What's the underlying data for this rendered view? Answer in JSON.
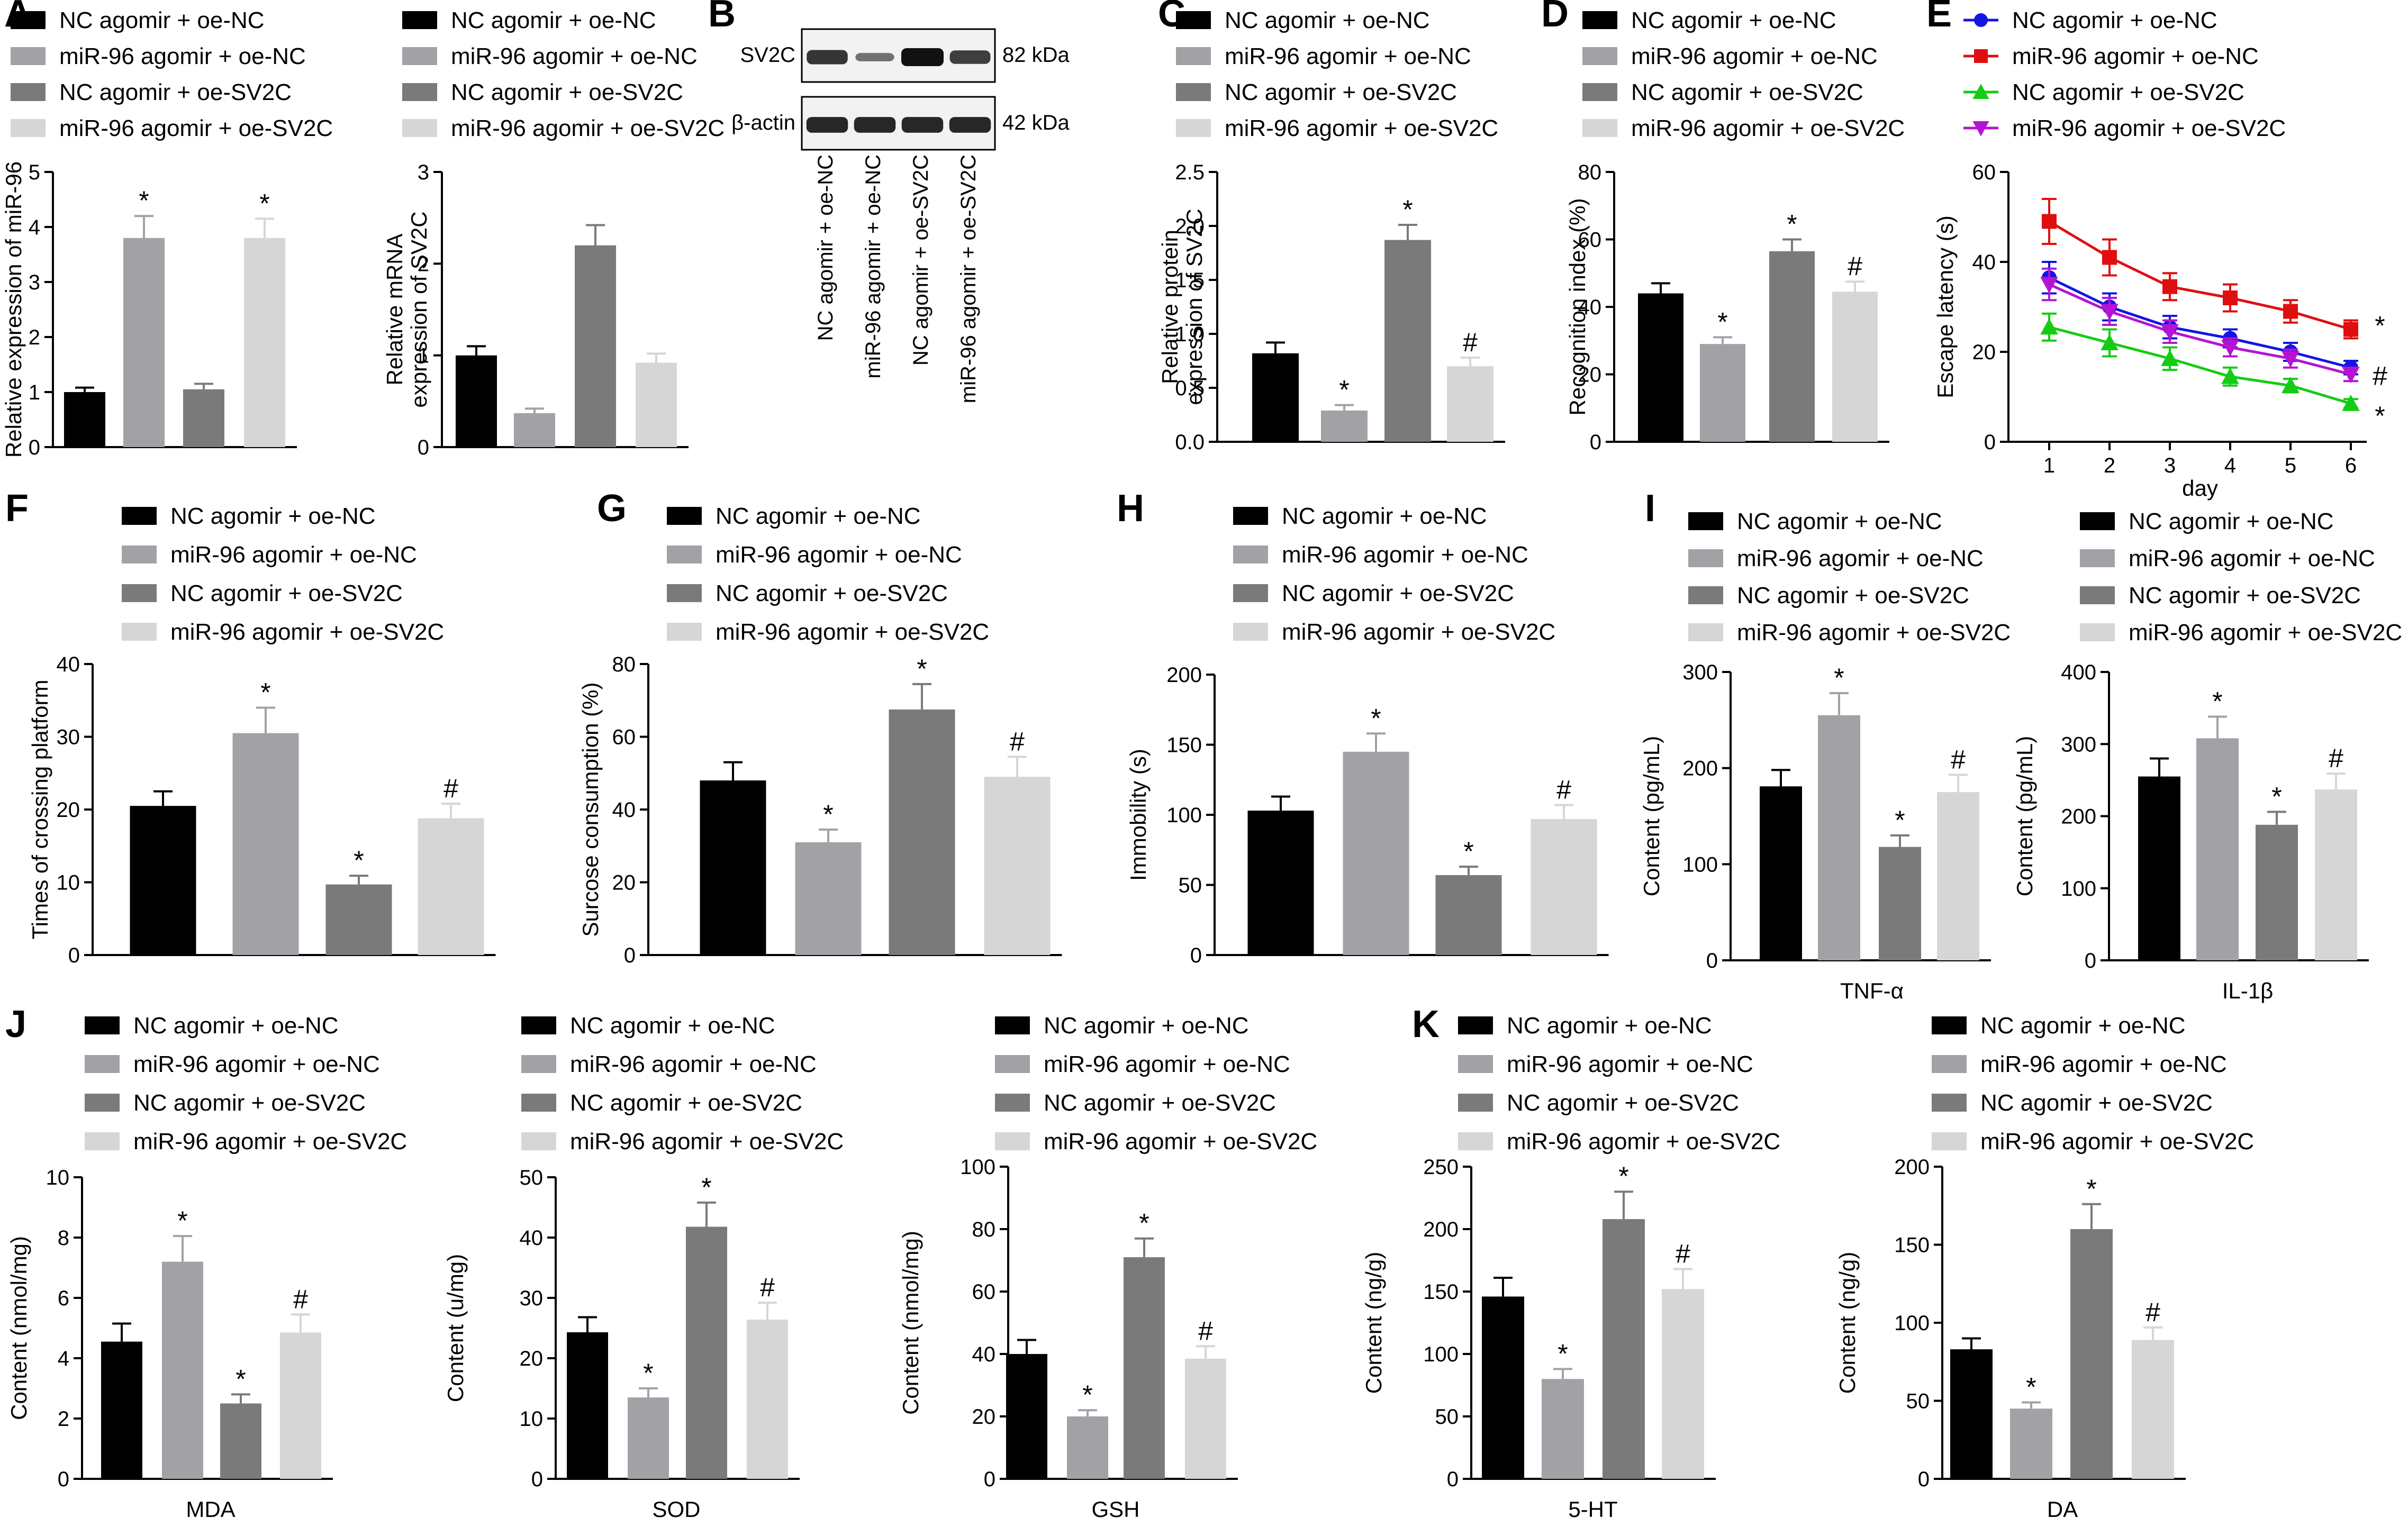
{
  "figure_labels": [
    "A",
    "B",
    "C",
    "D",
    "E",
    "F",
    "G",
    "H",
    "I",
    "J",
    "K"
  ],
  "legend_labels": [
    "NC agomir + oe-NC",
    "miR-96 agomir + oe-NC",
    "NC agomir + oe-SV2C",
    "miR-96 agomir + oe-SV2C"
  ],
  "colors": {
    "black": "#000000",
    "gray1": "#a2a2a6",
    "gray2": "#7a7a7a",
    "gray3": "#d6d6d6",
    "blue": "#1414e6",
    "red": "#e00f0f",
    "green": "#14cc14",
    "purple": "#b414d2"
  },
  "western_blot": {
    "panel": "B",
    "bands": [
      {
        "name": "SV2C",
        "size": "82 kDa",
        "intensity": [
          0.75,
          0.35,
          1.0,
          0.7
        ]
      },
      {
        "name": "β-actin",
        "size": "42 kDa",
        "intensity": [
          0.85,
          0.85,
          0.85,
          0.85
        ]
      }
    ],
    "lane_labels": [
      "NC agomir + oe-NC",
      "miR-96 agomir + oe-NC",
      "NC agomir + oe-SV2C",
      "miR-96 agomir + oe-SV2C"
    ]
  },
  "chart_data": [
    {
      "panel": "A",
      "type": "bar",
      "title": "",
      "xlabel": "",
      "ylabel": "Relative expression of miR-96",
      "categories": [
        "NC agomir + oe-NC",
        "miR-96 agomir + oe-NC",
        "NC agomir + oe-SV2C",
        "miR-96 agomir + oe-SV2C"
      ],
      "values": [
        1.0,
        3.8,
        1.05,
        3.8
      ],
      "errors": [
        0.08,
        0.4,
        0.1,
        0.35
      ],
      "marks": [
        "",
        "*",
        "",
        "*"
      ],
      "ylim": [
        0,
        5
      ],
      "yticks": [
        0,
        1,
        2,
        3,
        4,
        5
      ],
      "group_label": ""
    },
    {
      "panel": "A",
      "type": "bar",
      "title": "",
      "xlabel": "",
      "ylabel": "Relative mRNA expression of SV2C",
      "categories": [
        "NC agomir + oe-NC",
        "miR-96 agomir + oe-NC",
        "NC agomir + oe-SV2C",
        "miR-96 agomir + oe-SV2C"
      ],
      "values": [
        1.0,
        0.37,
        2.2,
        0.92
      ],
      "errors": [
        0.1,
        0.05,
        0.22,
        0.1
      ],
      "marks": [
        "",
        "",
        "",
        ""
      ],
      "ylim": [
        0,
        3
      ],
      "yticks": [
        0,
        1,
        2,
        3
      ],
      "group_label": ""
    },
    {
      "panel": "C",
      "type": "bar",
      "title": "",
      "xlabel": "",
      "ylabel": "Relative protein expression of SV2C",
      "categories": [
        "NC agomir + oe-NC",
        "miR-96 agomir + oe-NC",
        "NC agomir + oe-SV2C",
        "miR-96 agomir + oe-SV2C"
      ],
      "values": [
        0.82,
        0.29,
        1.87,
        0.7
      ],
      "errors": [
        0.1,
        0.05,
        0.14,
        0.08
      ],
      "marks": [
        "",
        "*",
        "*",
        "#"
      ],
      "ylim": [
        0,
        2.5
      ],
      "yticks": [
        0.0,
        0.5,
        1.0,
        1.5,
        2.0,
        2.5
      ],
      "group_label": ""
    },
    {
      "panel": "D",
      "type": "bar",
      "title": "",
      "xlabel": "",
      "ylabel": "Recognition index (%)",
      "categories": [
        "NC agomir + oe-NC",
        "miR-96 agomir + oe-NC",
        "NC agomir + oe-SV2C",
        "miR-96 agomir + oe-SV2C"
      ],
      "values": [
        44,
        29,
        56.5,
        44.5
      ],
      "errors": [
        3,
        2,
        3.5,
        3
      ],
      "marks": [
        "",
        "*",
        "*",
        "#"
      ],
      "ylim": [
        0,
        80
      ],
      "yticks": [
        0,
        20,
        40,
        60,
        80
      ],
      "group_label": ""
    },
    {
      "panel": "E",
      "type": "line",
      "title": "",
      "xlabel": "day",
      "ylabel": "Escape latency (s)",
      "x": [
        1,
        2,
        3,
        4,
        5,
        6
      ],
      "series": [
        {
          "name": "NC agomir + oe-NC",
          "color": "#1414e6",
          "marker": "circle",
          "values": [
            36.5,
            30,
            25.5,
            23,
            20,
            16.5
          ],
          "errors": [
            3.5,
            3,
            2.5,
            2,
            2,
            1.5
          ]
        },
        {
          "name": "miR-96 agomir + oe-NC",
          "color": "#e00f0f",
          "marker": "square",
          "values": [
            49,
            41,
            34.5,
            32,
            29,
            25
          ],
          "errors": [
            5,
            4,
            3,
            3,
            2.5,
            2
          ]
        },
        {
          "name": "NC agomir + oe-SV2C",
          "color": "#14cc14",
          "marker": "triangle-up",
          "values": [
            25.5,
            22,
            18.5,
            14.5,
            12.5,
            8.5
          ],
          "errors": [
            3,
            3,
            2.5,
            2,
            1.5,
            1
          ]
        },
        {
          "name": "miR-96 agomir + oe-SV2C",
          "color": "#b414d2",
          "marker": "triangle-down",
          "values": [
            35,
            29,
            24.5,
            21,
            18.5,
            15
          ],
          "errors": [
            3.5,
            3,
            2.5,
            2,
            2,
            1.5
          ]
        }
      ],
      "end_marks": [
        "*",
        "#",
        "*"
      ],
      "ylim": [
        0,
        60
      ],
      "yticks": [
        0,
        20,
        40,
        60
      ]
    },
    {
      "panel": "F",
      "type": "bar",
      "title": "",
      "xlabel": "",
      "ylabel": "Times of crossing platform",
      "categories": [
        "NC agomir + oe-NC",
        "miR-96 agomir + oe-NC",
        "NC agomir + oe-SV2C",
        "miR-96 agomir + oe-SV2C"
      ],
      "values": [
        20.5,
        30.5,
        9.7,
        18.8
      ],
      "errors": [
        2,
        3.5,
        1.2,
        2
      ],
      "marks": [
        "",
        "*",
        "*",
        "#"
      ],
      "ylim": [
        0,
        40
      ],
      "yticks": [
        0,
        10,
        20,
        30,
        40
      ],
      "group_label": ""
    },
    {
      "panel": "G",
      "type": "bar",
      "title": "",
      "xlabel": "",
      "ylabel": "Surcose consumption (%)",
      "categories": [
        "NC agomir + oe-NC",
        "miR-96 agomir + oe-NC",
        "NC agomir + oe-SV2C",
        "miR-96 agomir + oe-SV2C"
      ],
      "values": [
        48,
        31,
        67.5,
        49
      ],
      "errors": [
        5,
        3.5,
        7,
        5.5
      ],
      "marks": [
        "",
        "*",
        "*",
        "#"
      ],
      "ylim": [
        0,
        80
      ],
      "yticks": [
        0,
        20,
        40,
        60,
        80
      ],
      "group_label": ""
    },
    {
      "panel": "H",
      "type": "bar",
      "title": "",
      "xlabel": "",
      "ylabel": "Immobility (s)",
      "categories": [
        "NC agomir + oe-NC",
        "miR-96 agomir + oe-NC",
        "NC agomir + oe-SV2C",
        "miR-96 agomir + oe-SV2C"
      ],
      "values": [
        103,
        145,
        57,
        97
      ],
      "errors": [
        10,
        13,
        6,
        10
      ],
      "marks": [
        "",
        "*",
        "*",
        "#"
      ],
      "ylim": [
        0,
        200
      ],
      "yticks": [
        0,
        50,
        100,
        150,
        200
      ],
      "group_label": ""
    },
    {
      "panel": "I",
      "type": "bar",
      "title": "",
      "xlabel": "",
      "ylabel": "Content (pg/mL)",
      "categories": [
        "NC agomir + oe-NC",
        "miR-96 agomir + oe-NC",
        "NC agomir + oe-SV2C",
        "miR-96 agomir + oe-SV2C"
      ],
      "values": [
        181,
        255,
        118,
        175
      ],
      "errors": [
        17,
        23,
        12,
        18
      ],
      "marks": [
        "",
        "*",
        "*",
        "#"
      ],
      "ylim": [
        0,
        300
      ],
      "yticks": [
        0,
        100,
        200,
        300
      ],
      "group_label": "TNF-α"
    },
    {
      "panel": "I",
      "type": "bar",
      "title": "",
      "xlabel": "",
      "ylabel": "Content (pg/mL)",
      "categories": [
        "NC agomir + oe-NC",
        "miR-96 agomir + oe-NC",
        "NC agomir + oe-SV2C",
        "miR-96 agomir + oe-SV2C"
      ],
      "values": [
        255,
        308,
        188,
        237
      ],
      "errors": [
        25,
        30,
        18,
        22
      ],
      "marks": [
        "",
        "*",
        "*",
        "#"
      ],
      "ylim": [
        0,
        400
      ],
      "yticks": [
        0,
        100,
        200,
        300,
        400
      ],
      "group_label": "IL-1β"
    },
    {
      "panel": "J",
      "type": "bar",
      "title": "",
      "xlabel": "",
      "ylabel": "Content (nmol/mg)",
      "categories": [
        "NC agomir + oe-NC",
        "miR-96 agomir + oe-NC",
        "NC agomir + oe-SV2C",
        "miR-96 agomir + oe-SV2C"
      ],
      "values": [
        4.55,
        7.2,
        2.5,
        4.85
      ],
      "errors": [
        0.6,
        0.85,
        0.3,
        0.6
      ],
      "marks": [
        "",
        "*",
        "*",
        "#"
      ],
      "ylim": [
        0,
        10
      ],
      "yticks": [
        0,
        2,
        4,
        6,
        8,
        10
      ],
      "group_label": "MDA"
    },
    {
      "panel": "J",
      "type": "bar",
      "title": "",
      "xlabel": "",
      "ylabel": "Content (u/mg)",
      "categories": [
        "NC agomir + oe-NC",
        "miR-96 agomir + oe-NC",
        "NC agomir + oe-SV2C",
        "miR-96 agomir + oe-SV2C"
      ],
      "values": [
        24.3,
        13.5,
        41.8,
        26.4
      ],
      "errors": [
        2.5,
        1.5,
        4,
        2.8
      ],
      "marks": [
        "",
        "*",
        "*",
        "#"
      ],
      "ylim": [
        0,
        50
      ],
      "yticks": [
        0,
        10,
        20,
        30,
        40,
        50
      ],
      "group_label": "SOD"
    },
    {
      "panel": "J",
      "type": "bar",
      "title": "",
      "xlabel": "",
      "ylabel": "Content (nmol/mg)",
      "categories": [
        "NC agomir + oe-NC",
        "miR-96 agomir + oe-NC",
        "NC agomir + oe-SV2C",
        "miR-96 agomir + oe-SV2C"
      ],
      "values": [
        40,
        20,
        71,
        38.5
      ],
      "errors": [
        4.5,
        2,
        6,
        4
      ],
      "marks": [
        "",
        "*",
        "*",
        "#"
      ],
      "ylim": [
        0,
        100
      ],
      "yticks": [
        0,
        20,
        40,
        60,
        80,
        100
      ],
      "group_label": "GSH"
    },
    {
      "panel": "K",
      "type": "bar",
      "title": "",
      "xlabel": "",
      "ylabel": "Content (ng/g)",
      "categories": [
        "NC agomir + oe-NC",
        "miR-96 agomir + oe-NC",
        "NC agomir + oe-SV2C",
        "miR-96 agomir + oe-SV2C"
      ],
      "values": [
        146,
        80,
        208,
        152
      ],
      "errors": [
        15,
        8,
        22,
        16
      ],
      "marks": [
        "",
        "*",
        "*",
        "#"
      ],
      "ylim": [
        0,
        250
      ],
      "yticks": [
        0,
        50,
        100,
        150,
        200,
        250
      ],
      "group_label": "5-HT"
    },
    {
      "panel": "K",
      "type": "bar",
      "title": "",
      "xlabel": "",
      "ylabel": "Content (ng/g)",
      "categories": [
        "NC agomir + oe-NC",
        "miR-96 agomir + oe-NC",
        "NC agomir + oe-SV2C",
        "miR-96 agomir + oe-SV2C"
      ],
      "values": [
        83,
        45,
        160,
        89
      ],
      "errors": [
        7,
        4,
        16,
        8
      ],
      "marks": [
        "",
        "*",
        "*",
        "#"
      ],
      "ylim": [
        0,
        200
      ],
      "yticks": [
        0,
        50,
        100,
        150,
        200
      ],
      "group_label": "DA"
    }
  ]
}
